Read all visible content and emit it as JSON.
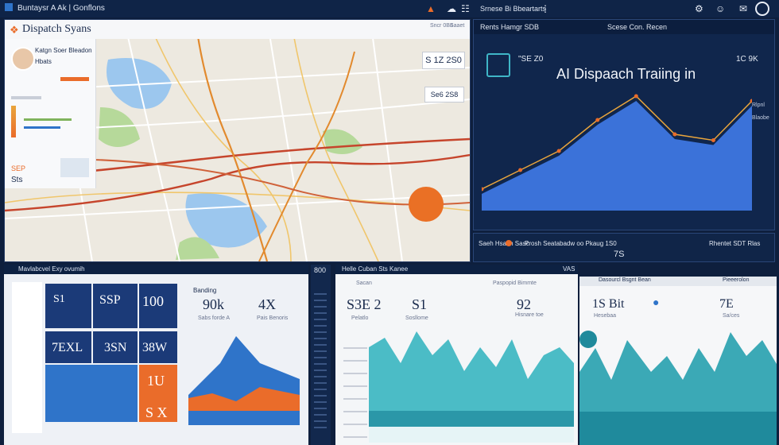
{
  "window": {
    "title": "Buntaysr A Ak | Gonflons",
    "right_label": "Srnese Bi Bbeartarts"
  },
  "map_panel": {
    "title": "Dispatch Syans",
    "header_tags": [
      "Sncr 0B8",
      "Saaet"
    ],
    "profile": {
      "name": "Katgn Soer Bleadon",
      "sub": "Hbats"
    },
    "left_values": [
      "SEP",
      "Sts"
    ],
    "callouts": [
      {
        "value": "S 1Z 2S0"
      },
      {
        "value": "Se6 2S8"
      }
    ],
    "route_colors": [
      "#c6452c",
      "#e28a2e",
      "#2d6fd1"
    ],
    "orange_marker_color": "#ea7025"
  },
  "ai_panel": {
    "header_left": "Rents Hamgr SDB",
    "header_mid": "Scese Con. Recen",
    "title": "AI Dispaach Traiing in",
    "top_left_value": "\"SE Z0",
    "top_right_value": "1C 9K",
    "legend": [
      "Rlpnl",
      "Blaobe"
    ],
    "bottom_left": "Saeh Hsach Sasc",
    "bottom_mid": "Prosh Seatabadw oo Pkaug 1S0",
    "bottom_right": "Rhentet SDT Rlas",
    "bottom_value": "7S",
    "colors": {
      "area": "#3b72d9",
      "area_light": "#6fa7ee",
      "line": "#e9a53c",
      "bg": "#10264c"
    },
    "chart_series": [
      14,
      30,
      46,
      72,
      92,
      60,
      55,
      88
    ]
  },
  "bottom_left": {
    "header": "Mavlabcvel Exy ovumih",
    "side_value": "800",
    "tiles": [
      {
        "value": "S1 ",
        "label": ""
      },
      {
        "value": "SSP",
        "label": ""
      },
      {
        "value": "100",
        "label": ""
      },
      {
        "value": "7EXL",
        "label": ""
      },
      {
        "value": "3SN",
        "label": ""
      },
      {
        "value": "38W",
        "label": ""
      },
      {
        "value": "1U",
        "label": ""
      },
      {
        "value": "S X",
        "label": ""
      }
    ],
    "stats": [
      {
        "label": "Banding",
        "value": "90k",
        "sub": "Sabs forde A"
      },
      {
        "label": "",
        "value": "4X",
        "sub": "Pais Benoris"
      }
    ],
    "chart_colors": {
      "top": "#2f74c9",
      "bottom": "#ea6c2a"
    }
  },
  "bottom_mid": {
    "header": "Helle Cuban Sts Kanee",
    "header_right": "VAS",
    "labels": [
      "Sacan",
      "Paspopid Bimmte"
    ],
    "stats": [
      {
        "value": "S3E 2",
        "sub": "Pelatlo"
      },
      {
        "value": "S1",
        "sub": "Sosllome"
      },
      {
        "value": "92",
        "sub": "Hisnare toe"
      }
    ],
    "area_color": "#4bbcc6"
  },
  "bottom_right": {
    "header": "Dasourcl Bsgnt Bean",
    "header_right": "Pieeerolon",
    "stats": [
      {
        "value": "1S Bit",
        "sub": "Hesebaa"
      },
      {
        "value": "7E",
        "sub": "Sa/ces"
      }
    ],
    "area_color": "#3ba9b6"
  }
}
